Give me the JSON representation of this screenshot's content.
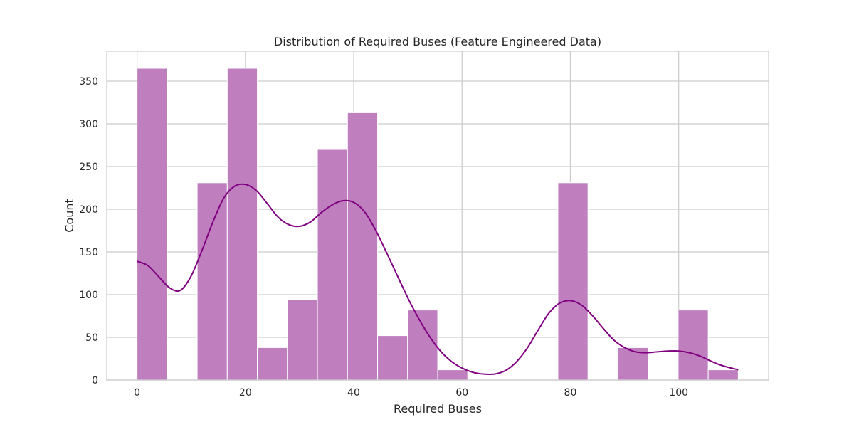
{
  "chart_data": {
    "type": "bar",
    "title": "Distribution of Required Buses (Feature Engineered Data)",
    "xlabel": "Required Buses",
    "ylabel": "Count",
    "xlim": [
      -5.6,
      116.6
    ],
    "ylim": [
      0,
      385
    ],
    "xticks": [
      0,
      20,
      40,
      60,
      80,
      100
    ],
    "yticks": [
      0,
      50,
      100,
      150,
      200,
      250,
      300,
      350
    ],
    "grid": true,
    "bar_color": "#bf7fbf",
    "kde_color": "#800080",
    "bin_edges": [
      0,
      5.55,
      11.1,
      16.65,
      22.2,
      27.75,
      33.3,
      38.85,
      44.4,
      49.95,
      55.5,
      61.05,
      66.6,
      72.15,
      77.7,
      83.25,
      88.8,
      94.35,
      99.9,
      105.45,
      111
    ],
    "counts": [
      365,
      0,
      231,
      365,
      38,
      94,
      270,
      313,
      52,
      82,
      12,
      0,
      0,
      0,
      231,
      0,
      38,
      0,
      82,
      12
    ],
    "kde": {
      "x": [
        0,
        2,
        4,
        6,
        8,
        10,
        12,
        14,
        16,
        18,
        20,
        22,
        24,
        26,
        28,
        30,
        32,
        34,
        36,
        38,
        40,
        42,
        44,
        46,
        48,
        50,
        52,
        54,
        56,
        58,
        60,
        62,
        64,
        66,
        68,
        70,
        72,
        74,
        76,
        78,
        80,
        82,
        84,
        86,
        88,
        90,
        92,
        94,
        96,
        98,
        100,
        102,
        104,
        106,
        108,
        111
      ],
      "y": [
        139,
        134,
        121,
        108,
        105,
        122,
        152,
        185,
        213,
        227,
        229,
        222,
        207,
        191,
        182,
        180,
        185,
        196,
        205,
        210,
        208,
        197,
        176,
        150,
        123,
        96,
        72,
        51,
        34,
        22,
        14,
        9,
        7,
        7,
        11,
        21,
        37,
        58,
        78,
        90,
        93,
        88,
        76,
        61,
        47,
        38,
        33,
        32,
        33,
        34,
        34,
        32,
        28,
        22,
        17,
        12
      ]
    }
  }
}
